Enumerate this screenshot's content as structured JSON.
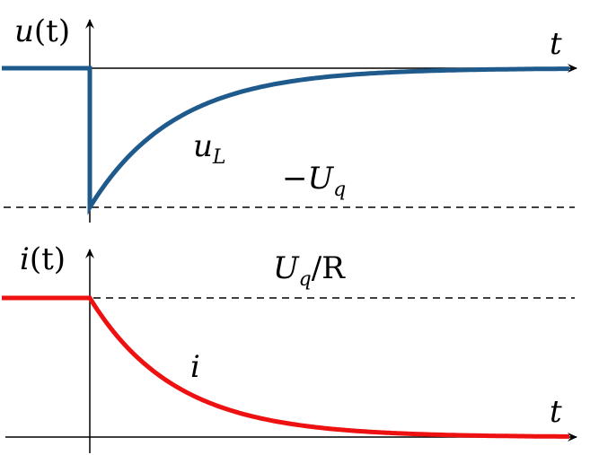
{
  "top_plot": {
    "axis_label": "u(t)",
    "axis_label_fn": "u",
    "axis_label_arg": "(t)",
    "time_label": "t",
    "curve_label_main": "u",
    "curve_label_sub": "L",
    "level_label_prefix": "−U",
    "level_label_sub": "q",
    "curve_color": "#1f5a8c"
  },
  "bottom_plot": {
    "axis_label": "i(t)",
    "axis_label_fn": "i",
    "axis_label_arg": "(t)",
    "time_label": "t",
    "curve_label": "i",
    "level_label_main": "U",
    "level_label_sub": "q",
    "level_label_rest": "/R",
    "curve_color": "#ee1111"
  }
}
